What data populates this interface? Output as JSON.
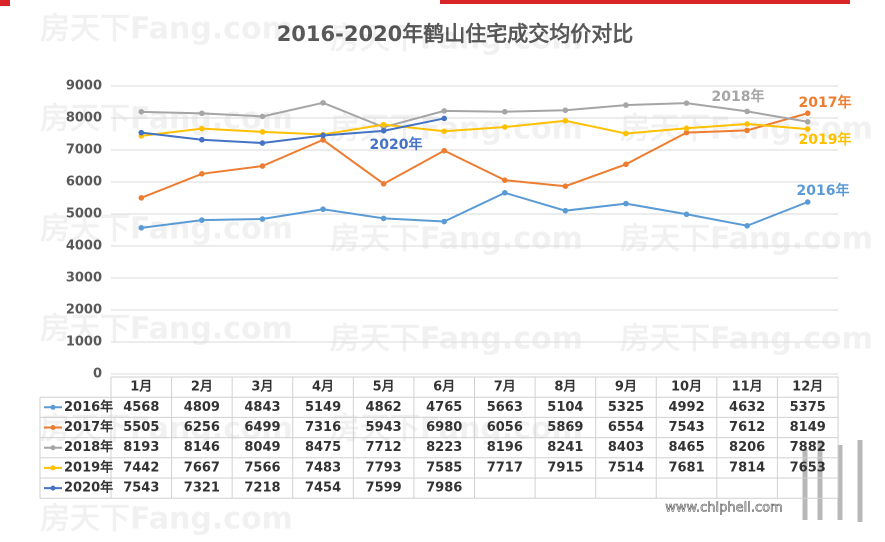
{
  "chart_data": {
    "type": "line",
    "title": "2016-2020年鹤山住宅成交均价对比",
    "categories": [
      "1月",
      "2月",
      "3月",
      "4月",
      "5月",
      "6月",
      "7月",
      "8月",
      "9月",
      "10月",
      "11月",
      "12月"
    ],
    "series": [
      {
        "name": "2016年",
        "color": "#5b9bd5",
        "values": [
          4568,
          4809,
          4843,
          5149,
          4862,
          4765,
          5663,
          5104,
          5325,
          4992,
          4632,
          5375
        ]
      },
      {
        "name": "2017年",
        "color": "#ed7d31",
        "values": [
          5505,
          6256,
          6499,
          7316,
          5943,
          6980,
          6056,
          5869,
          6554,
          7543,
          7612,
          8149
        ]
      },
      {
        "name": "2018年",
        "color": "#a5a5a5",
        "values": [
          8193,
          8146,
          8049,
          8475,
          7712,
          8223,
          8196,
          8241,
          8403,
          8465,
          8206,
          7882
        ]
      },
      {
        "name": "2019年",
        "color": "#ffc000",
        "values": [
          7442,
          7667,
          7566,
          7483,
          7793,
          7585,
          7717,
          7915,
          7514,
          7681,
          7814,
          7653
        ]
      },
      {
        "name": "2020年",
        "color": "#4472c4",
        "values": [
          7543,
          7321,
          7218,
          7454,
          7599,
          7986,
          null,
          null,
          null,
          null,
          null,
          null
        ]
      }
    ],
    "ylim": [
      0,
      9000
    ],
    "yticks": [
      0,
      1000,
      2000,
      3000,
      4000,
      5000,
      6000,
      7000,
      8000,
      9000
    ],
    "grid": true,
    "watermark": "房天下Fang.com",
    "site": "www.chiphell.com"
  }
}
